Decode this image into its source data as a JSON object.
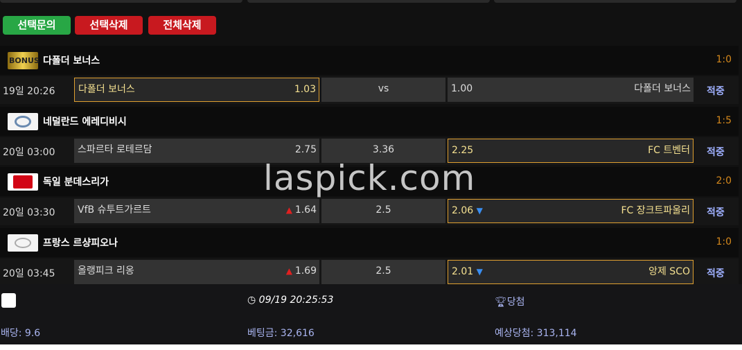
{
  "buttons": {
    "inquiry": "선택문의",
    "delete_selected": "선택삭제",
    "delete_all": "전체삭제"
  },
  "colors": {
    "green": "#28a745",
    "red": "#c8191f",
    "accent": "#e0a030",
    "score": "#d4881c"
  },
  "leagues": [
    {
      "logo": "bonus-logo",
      "name": "다폴더 보너스",
      "score": "1:0",
      "match": {
        "time": "19일 20:26",
        "home": "다폴더 보너스",
        "home_odds": "1.03",
        "draw": "vs",
        "away_odds": "1.00",
        "away": "다폴더 보너스",
        "result": "적중",
        "selected": "home"
      }
    },
    {
      "logo": "eredivisie-logo",
      "name": "네덜란드 에레디비시",
      "score": "1:5",
      "match": {
        "time": "20일 03:00",
        "home": "스파르타 로테르담",
        "home_odds": "2.75",
        "draw": "3.36",
        "away_odds": "2.25",
        "away": "FC 트벤터",
        "result": "적중",
        "selected": "away"
      }
    },
    {
      "logo": "bundesliga-logo",
      "name": "독일 분데스리가",
      "score": "2:0",
      "match": {
        "time": "20일 03:30",
        "home": "VfB 슈투트가르트",
        "home_odds": "1.64",
        "home_trend": "up",
        "draw": "2.5",
        "away_odds": "2.06",
        "away_trend": "down",
        "away": "FC 장크트파울리",
        "result": "적중",
        "selected": "away"
      }
    },
    {
      "logo": "ligue1-logo",
      "name": "프랑스 르샹피오나",
      "score": "1:0",
      "match": {
        "time": "20일 03:45",
        "home": "올랭피크 리옹",
        "home_odds": "1.69",
        "home_trend": "up",
        "draw": "2.5",
        "away_odds": "2.01",
        "away_trend": "down",
        "away": "앙제 SCO",
        "result": "적중",
        "selected": "away"
      }
    }
  ],
  "footer": {
    "datetime": "09/19 20:25:53",
    "win_label": "당첨",
    "odds": "배당: 9.6",
    "bet": "베팅금: 32,616",
    "expected": "예상당첨: 313,114"
  },
  "watermark": "laspick.com"
}
